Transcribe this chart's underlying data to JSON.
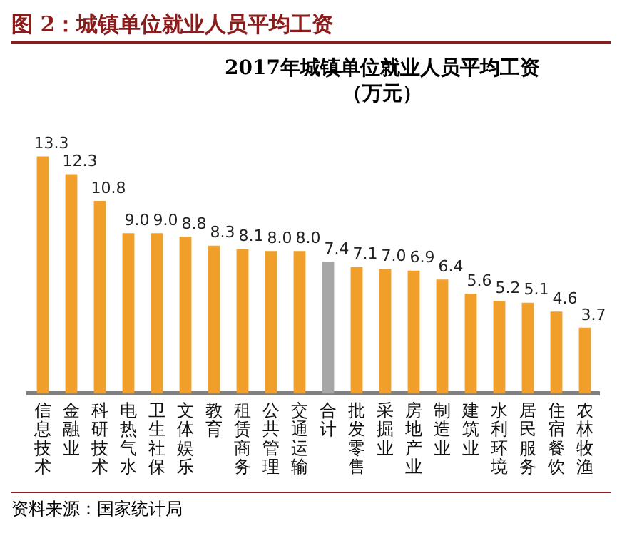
{
  "chart_data": {
    "type": "bar",
    "title": "图 2：城镇单位就业人员平均工资",
    "subtitle": "2017年城镇单位就业人员平均工资",
    "categories": [
      "信息技术",
      "金融业",
      "科研技术",
      "电热气水",
      "卫生社保",
      "文体娱乐",
      "教育",
      "租赁商务",
      "公共管理",
      "交通运输",
      "合计",
      "批发零售",
      "采掘业",
      "房地产业",
      "制造业",
      "建筑业",
      "水利环境",
      "居民服务",
      "住宿餐饮",
      "农林牧渔"
    ],
    "values": [
      13.3,
      12.3,
      10.8,
      9.0,
      9.0,
      8.8,
      8.3,
      8.1,
      8.0,
      8.0,
      7.4,
      7.1,
      7.0,
      6.9,
      6.4,
      5.6,
      5.2,
      5.1,
      4.6,
      3.7
    ],
    "value_labels": [
      "13.3",
      "12.3",
      "10.8",
      "9.0",
      "9.0",
      "8.8",
      "8.3",
      "8.1",
      "8.0",
      "8.0",
      "7.4",
      "7.1",
      "7.0",
      "6.9",
      "6.4",
      "5.6",
      "5.2",
      "5.1",
      "4.6",
      "3.7"
    ],
    "colors": [
      "#f0a02a",
      "#f0a02a",
      "#f0a02a",
      "#f0a02a",
      "#f0a02a",
      "#f0a02a",
      "#f0a02a",
      "#f0a02a",
      "#f0a02a",
      "#f0a02a",
      "#a6a6a6",
      "#f0a02a",
      "#f0a02a",
      "#f0a02a",
      "#f0a02a",
      "#f0a02a",
      "#f0a02a",
      "#f0a02a",
      "#f0a02a",
      "#f0a02a"
    ],
    "relative": false,
    "annotations": [
      "（万元）",
      "资料来源：国家统计局"
    ]
  }
}
